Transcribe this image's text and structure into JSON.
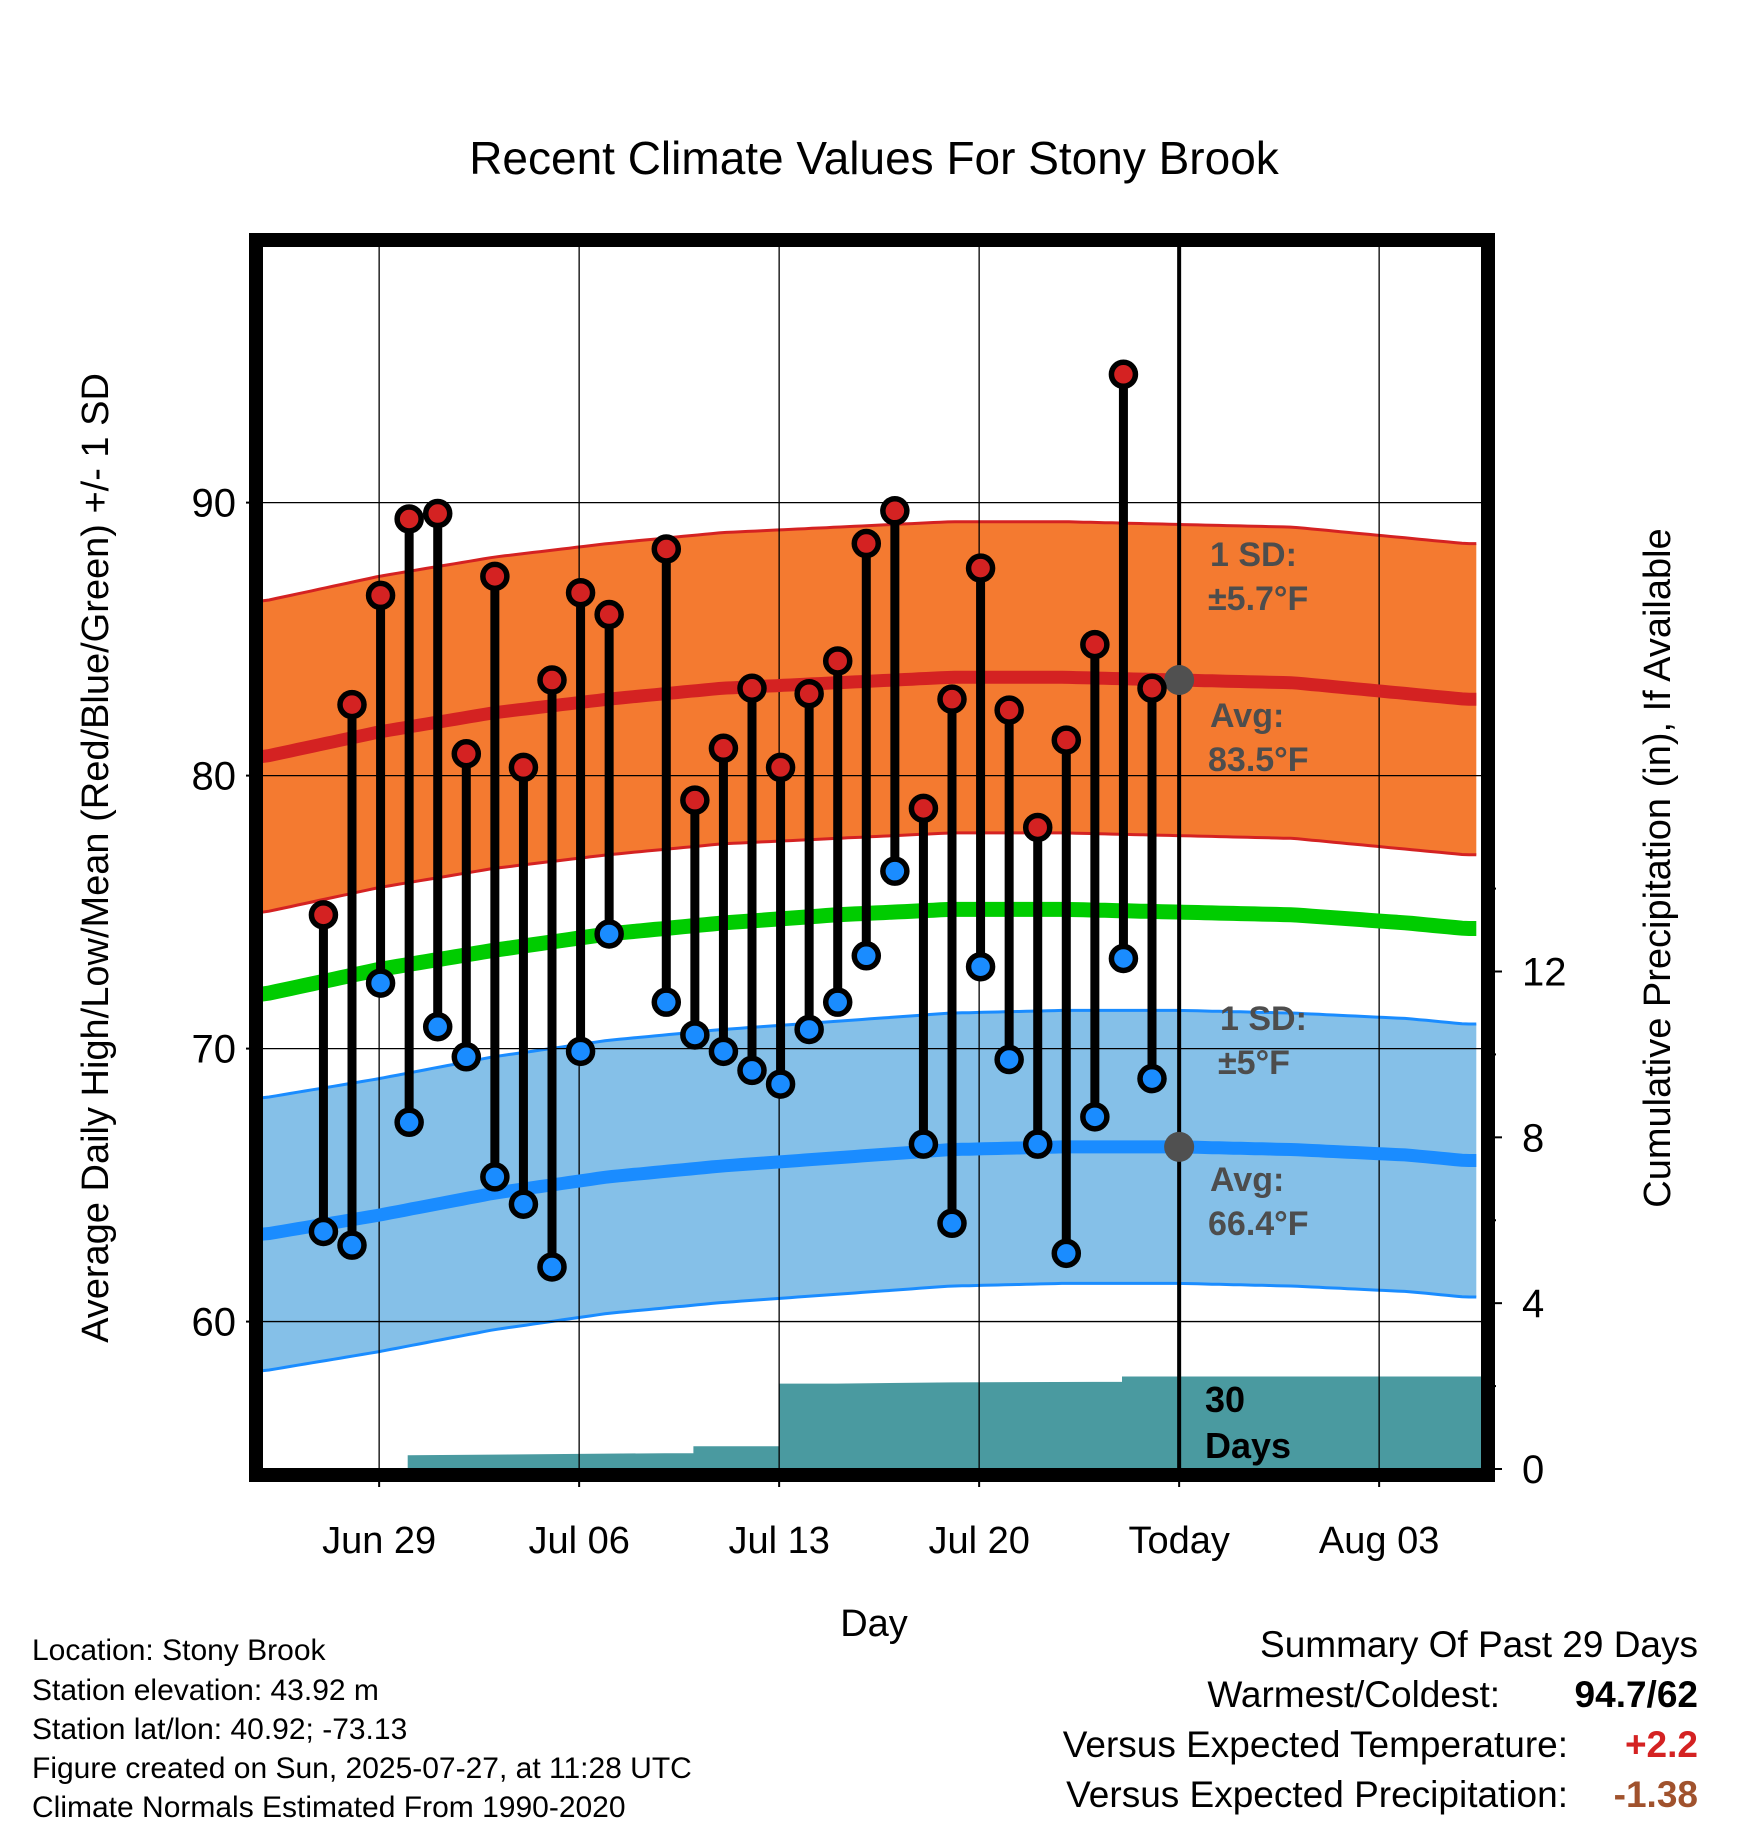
{
  "chart_data": {
    "type": "line",
    "title": "Recent Climate Values For Stony Brook",
    "xlabel": "Day",
    "ylabel": "Average Daily High/Low/Mean (Red/Blue/Green) +/- 1 SD",
    "y2label": "Cumulative Precipitation (in), If Available",
    "x_ticks": [
      "Jun 29",
      "Jul 06",
      "Jul 13",
      "Jul 20",
      "Today",
      "Aug 03"
    ],
    "x_range_days": [
      -32.1,
      10.6
    ],
    "x_today_offset": 0,
    "ylim": [
      54.6,
      99.4
    ],
    "y_ticks": [
      60,
      70,
      80,
      90
    ],
    "y2lim": [
      0,
      29.5
    ],
    "y2_ticks": [
      0,
      4,
      8,
      12
    ],
    "grid": true,
    "daily": {
      "day_offset": [
        -29,
        -28,
        -27,
        -26,
        -25,
        -24,
        -23,
        -22,
        -21,
        -20,
        -19,
        -18,
        -17,
        -16,
        -15,
        -14,
        -13,
        -12,
        -11,
        -10,
        -9,
        -8,
        -7,
        -6,
        -5,
        -4,
        -3,
        -2,
        -1
      ],
      "high": [
        74.9,
        82.6,
        86.6,
        89.4,
        89.6,
        80.8,
        87.3,
        80.3,
        83.5,
        86.7,
        85.9,
        null,
        88.3,
        79.1,
        81.0,
        83.2,
        80.3,
        83.0,
        84.2,
        88.5,
        89.7,
        78.8,
        82.8,
        87.6,
        82.4,
        78.1,
        81.3,
        84.8,
        94.7
      ],
      "low": [
        63.3,
        62.8,
        72.4,
        67.3,
        70.8,
        69.7,
        65.3,
        64.3,
        62.0,
        69.9,
        74.2,
        null,
        71.7,
        70.5,
        69.9,
        69.2,
        68.7,
        70.7,
        71.7,
        73.4,
        76.5,
        66.5,
        63.6,
        73.0,
        69.6,
        66.5,
        62.5,
        67.5,
        73.3
      ]
    },
    "daily_extra": {
      "day_offset": -1,
      "high": 83.2,
      "low": 68.9
    },
    "normals_day_offset": [
      -32,
      -28,
      -24,
      -20,
      -16,
      -12,
      -8,
      -4,
      0,
      4,
      8,
      10
    ],
    "normal_high": [
      80.7,
      81.6,
      82.3,
      82.8,
      83.2,
      83.4,
      83.6,
      83.6,
      83.5,
      83.4,
      83.0,
      82.8
    ],
    "normal_high_sd": 5.7,
    "normal_low": [
      63.2,
      63.9,
      64.7,
      65.3,
      65.7,
      66.0,
      66.3,
      66.4,
      66.4,
      66.3,
      66.1,
      65.9
    ],
    "normal_low_sd": 5.0,
    "normal_mean": [
      72.0,
      72.9,
      73.6,
      74.2,
      74.6,
      74.9,
      75.1,
      75.1,
      75.0,
      74.9,
      74.6,
      74.4
    ],
    "precip_day_offset": [
      -28,
      -27,
      -27,
      -18,
      -17,
      -17,
      -14,
      -14,
      -12,
      -8,
      -3,
      -2,
      -2,
      10.6
    ],
    "precip_cum_in": [
      0,
      0,
      0.33,
      0.38,
      0.38,
      0.55,
      0.55,
      2.06,
      2.06,
      2.09,
      2.1,
      2.1,
      2.23,
      2.23
    ],
    "annotations": {
      "high_sd": "1 SD:",
      "high_sd_val": "±5.7°F",
      "high_avg": "Avg:",
      "high_avg_val": "83.5°F",
      "low_sd": "1 SD:",
      "low_sd_val": "±5°F",
      "low_avg": "Avg:",
      "low_avg_val": "66.4°F",
      "days1": "30",
      "days2": "Days"
    },
    "colors": {
      "high_band": "#f47a30",
      "high_line": "#d42222",
      "low_band": "#85c0e8",
      "low_line": "#1a8cff",
      "mean_line": "#00cc00",
      "precip": "#4a9aa0",
      "high_dot": "#d42222",
      "low_dot": "#1a8cff",
      "annot": "#4d4d4d"
    }
  },
  "info": {
    "location": "Location: Stony Brook",
    "elevation": "Station elevation: 43.92 m",
    "latlon": "Station lat/lon: 40.92; -73.13",
    "created": "Figure created on Sun, 2025-07-27, at 11:28 UTC",
    "normals": "Climate Normals Estimated From 1990-2020"
  },
  "summary": {
    "title": "Summary Of Past 29 Days",
    "warm_cold_label": "Warmest/Coldest:",
    "warm_cold_value": "94.7/62",
    "temp_label": "Versus Expected Temperature:",
    "temp_value": "+2.2",
    "temp_color": "#d42222",
    "precip_label": "Versus Expected Precipitation:",
    "precip_value": "-1.38",
    "precip_color": "#a0522d"
  }
}
